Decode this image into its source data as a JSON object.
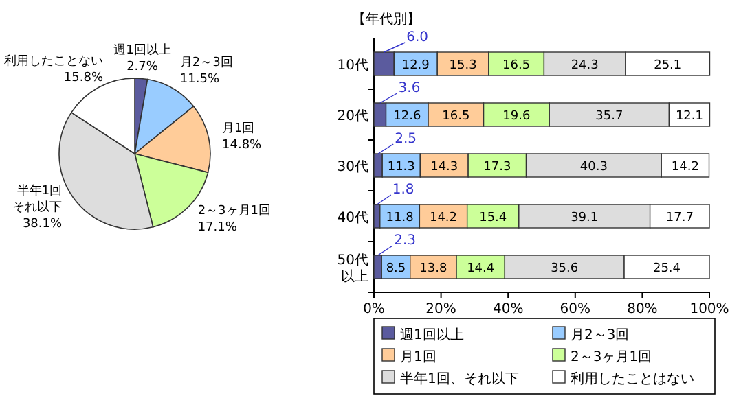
{
  "chart_data": [
    {
      "type": "pie",
      "categories": [
        "週1回以上",
        "月2～3回",
        "月1回",
        "2～3ヶ月1回",
        "半年1回それ以下",
        "利用したことない"
      ],
      "values": [
        2.7,
        11.5,
        14.8,
        17.1,
        38.1,
        15.8
      ],
      "value_labels": [
        "2.7%",
        "11.5%",
        "14.8%",
        "17.1%",
        "38.1%",
        "15.8%"
      ],
      "colors": [
        "#5b5b9e",
        "#99ccff",
        "#ffcc99",
        "#ccff99",
        "#dddddd",
        "#ffffff"
      ]
    },
    {
      "type": "bar",
      "orientation": "horizontal",
      "stacked": true,
      "title": "【年代別】",
      "categories": [
        "10代",
        "20代",
        "30代",
        "40代",
        "50代以上"
      ],
      "series": [
        {
          "name": "週1回以上",
          "color": "#5b5b9e",
          "values": [
            6.0,
            3.6,
            2.5,
            1.8,
            2.3
          ],
          "value_labels": [
            "6.0",
            "3.6",
            "2.5",
            "1.8",
            "2.3"
          ]
        },
        {
          "name": "月2～3回",
          "color": "#99ccff",
          "values": [
            12.9,
            12.6,
            11.3,
            11.8,
            8.5
          ]
        },
        {
          "name": "月1回",
          "color": "#ffcc99",
          "values": [
            15.3,
            16.5,
            14.3,
            14.2,
            13.8
          ]
        },
        {
          "name": "2～3ヶ月1回",
          "color": "#ccff99",
          "values": [
            16.5,
            19.6,
            17.3,
            15.4,
            14.4
          ]
        },
        {
          "name": "半年1回、それ以下",
          "color": "#dddddd",
          "values": [
            24.3,
            35.7,
            40.3,
            39.1,
            35.6
          ]
        },
        {
          "name": "利用したことはない",
          "color": "#ffffff",
          "values": [
            25.1,
            12.1,
            14.2,
            17.7,
            25.4
          ]
        }
      ],
      "xlim": [
        0,
        100
      ],
      "xticks": [
        {
          "value": 0,
          "label": "0%"
        },
        {
          "value": 20,
          "label": "20%"
        },
        {
          "value": 40,
          "label": "40%"
        },
        {
          "value": 60,
          "label": "60%"
        },
        {
          "value": 80,
          "label": "80%"
        },
        {
          "value": 100,
          "label": "100%"
        }
      ],
      "data_labels": true,
      "legend": "bottom"
    }
  ]
}
